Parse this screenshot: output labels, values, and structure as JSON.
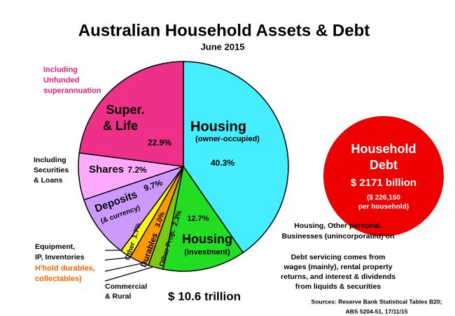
{
  "chart_data": {
    "type": "pie",
    "title": "Australian Household Assets & Debt",
    "subtitle": "June  2015",
    "categories": [
      "Housing",
      "Housing",
      "Other Prop.",
      "Durables",
      "Other",
      "Deposits",
      "Shares",
      "Super."
    ],
    "sublabels": [
      "(owner-occupied)",
      "(investment)",
      null,
      null,
      null,
      "(& currency)",
      null,
      "& Life"
    ],
    "values": [
      40.3,
      12.7,
      2.3,
      3.0,
      1.7,
      9.7,
      7.2,
      22.9
    ],
    "value_labels": [
      "40.3%",
      "12.7%",
      "2.3%",
      "3.0%",
      "1.7%",
      "9.7%",
      "7.2%",
      "22.9%"
    ],
    "colors": [
      "#44eeff",
      "#22dd22",
      "#77cc11",
      "#ff9900",
      "#ffff00",
      "#cc99ff",
      "#ffaaff",
      "#ee3088"
    ],
    "annotations": [
      {
        "lines": [
          "Including",
          "Unfunded",
          "superannuation"
        ],
        "color": "#e8207a"
      },
      {
        "lines": [
          "Including",
          "Securities",
          "& Loans"
        ],
        "color": "#000000"
      },
      {
        "lines": [
          "Equipment,",
          "IP,  Inventories"
        ],
        "color": "#000000"
      },
      {
        "lines": [
          "H'hold durables,",
          "collectables)"
        ],
        "color": "#ff6600"
      },
      {
        "lines": [
          "Commercial",
          "& Rural"
        ],
        "color": "#000000"
      },
      {
        "lines": [
          "$ 10.6 trillion"
        ],
        "color": "#000000"
      },
      {
        "lines": [
          "Household",
          "Debt",
          "$ 2171 billion",
          "($ 226,150",
          "per household)"
        ],
        "color": "#ffffff"
      },
      {
        "lines": [
          "Housing, Other personal.",
          "Businesses (unincorporated) on"
        ],
        "color": "#000000"
      },
      {
        "lines": [
          "Debt servicing comes from",
          "wages (mainly), rental property",
          "returns, and interest & dividends",
          "from liquids & securities"
        ],
        "color": "#000000"
      },
      {
        "lines": [
          "Sources:  Reserve Bank  Statistical Tables B20;",
          "ABS 5204-51, 17/11/15"
        ],
        "color": "#000000"
      }
    ]
  }
}
